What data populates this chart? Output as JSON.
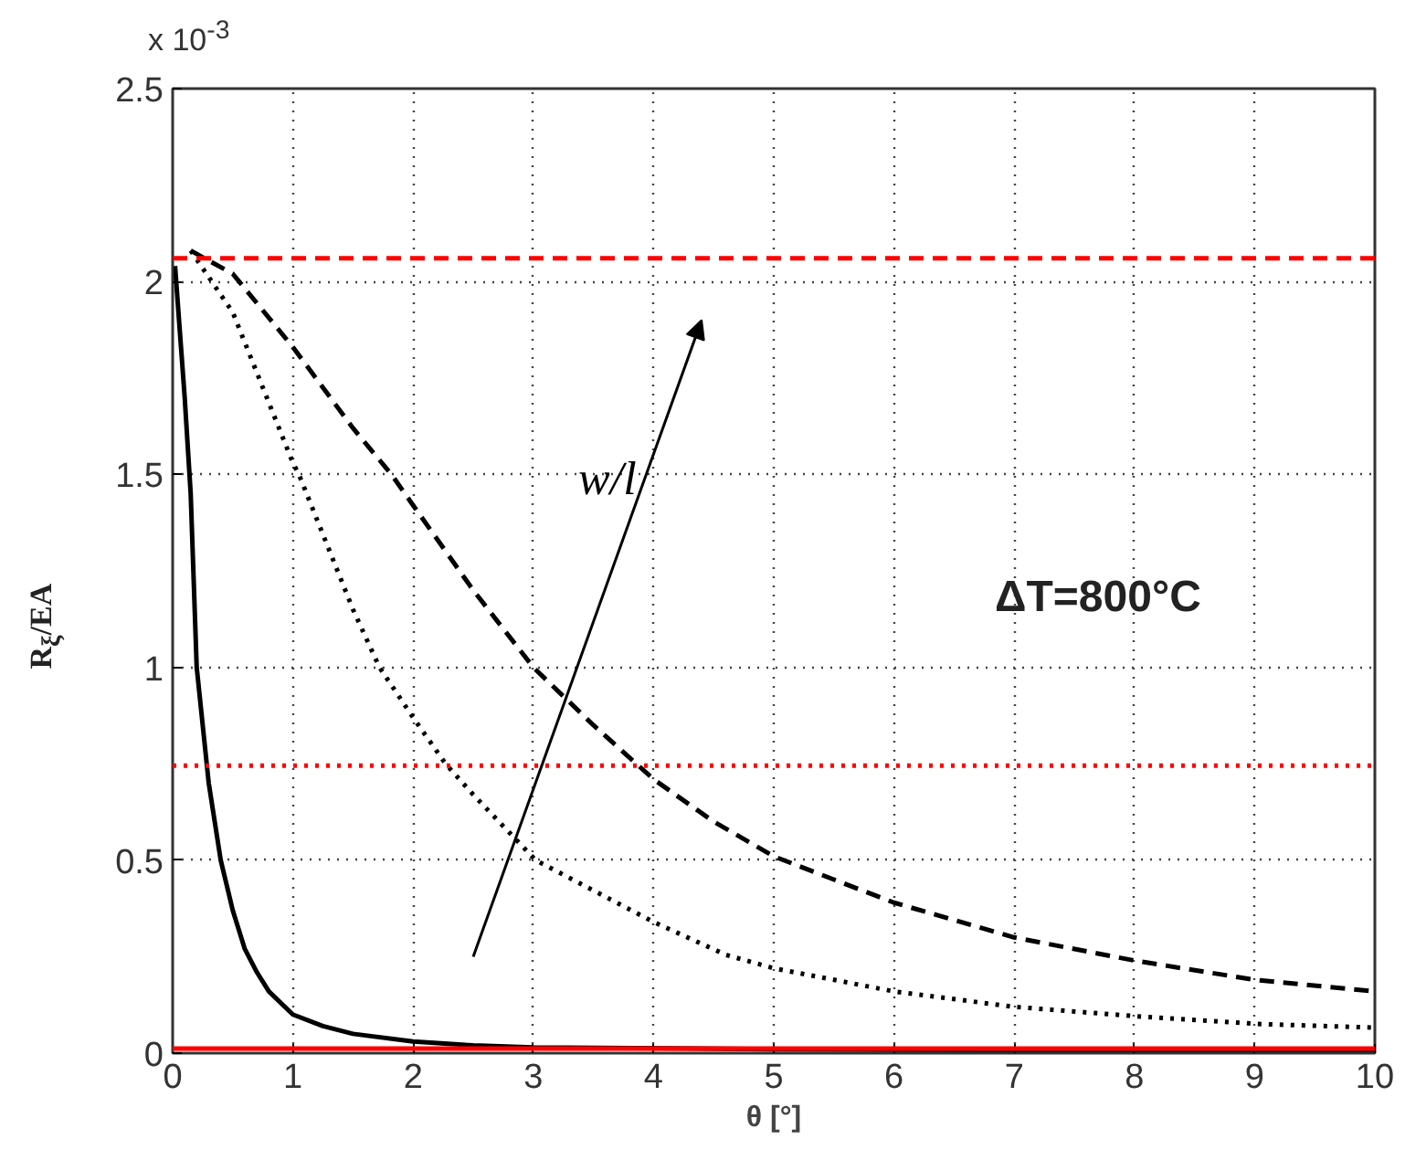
{
  "chart_data": {
    "type": "line",
    "xlabel": "θ [°]",
    "ylabel": "R$_{ξ}$/EA",
    "annotations": [
      "x 10$^{-3}$",
      "ΔT=800°C",
      "w/l"
    ],
    "xlim": [
      0,
      10
    ],
    "ylim": [
      0,
      2.5
    ],
    "xticks": [
      0,
      1,
      2,
      3,
      4,
      5,
      6,
      7,
      8,
      9,
      10
    ],
    "yticks": [
      0,
      0.5,
      1,
      1.5,
      2,
      2.5
    ],
    "grid": true,
    "series": [
      {
        "color": "#000000",
        "line_style": "solid",
        "x": [
          0.02,
          0.1,
          0.15,
          0.2,
          0.25,
          0.3,
          0.4,
          0.5,
          0.6,
          0.7,
          0.8,
          1.0,
          1.25,
          1.5,
          2.0,
          2.5,
          3,
          5,
          10
        ],
        "values": [
          2.04,
          1.7,
          1.45,
          1.0,
          0.85,
          0.7,
          0.5,
          0.37,
          0.27,
          0.21,
          0.16,
          0.1,
          0.07,
          0.05,
          0.03,
          0.02,
          0.015,
          0.01,
          0.005
        ]
      },
      {
        "color": "#000000",
        "line_style": "dotted",
        "x": [
          0.15,
          0.5,
          1,
          1.05,
          1.5,
          1.72,
          2,
          2.27,
          2.5,
          3.02,
          4,
          4.6,
          5,
          6,
          7,
          8,
          9,
          10
        ],
        "values": [
          2.08,
          1.92,
          1.53,
          1.5,
          1.15,
          1.0,
          0.87,
          0.75,
          0.67,
          0.5,
          0.34,
          0.255,
          0.22,
          0.16,
          0.12,
          0.096,
          0.076,
          0.066
        ]
      },
      {
        "color": "#000000",
        "line_style": "dashed",
        "x": [
          0.15,
          0.5,
          1,
          1.5,
          1.82,
          2,
          2.5,
          3,
          3.5,
          4,
          4.5,
          5,
          6,
          7,
          8,
          9,
          10
        ],
        "values": [
          2.08,
          2.02,
          1.83,
          1.62,
          1.5,
          1.42,
          1.2,
          1.0,
          0.85,
          0.71,
          0.6,
          0.51,
          0.39,
          0.3,
          0.24,
          0.19,
          0.16
        ]
      }
    ],
    "ref_lines": [
      {
        "axis": "y",
        "value": 2.06,
        "color": "#ff0000",
        "line_style": "dashed"
      },
      {
        "axis": "y",
        "value": 0.745,
        "color": "#ff0000",
        "line_style": "dotted"
      },
      {
        "axis": "y",
        "value": 0.012,
        "color": "#ff0000",
        "line_style": "solid"
      }
    ]
  }
}
